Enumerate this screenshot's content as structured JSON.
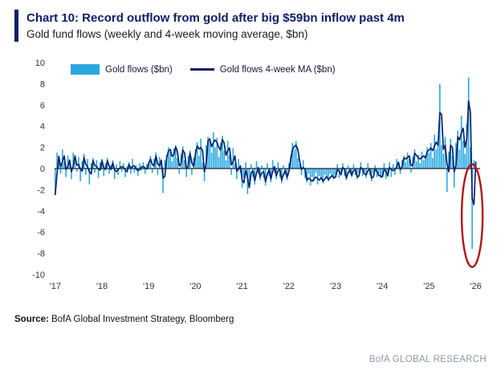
{
  "header": {
    "title": "Chart 10: Record outflow from gold after big $59bn inflow past 4m",
    "subtitle": "Gold fund flows (weekly and 4-week moving average, $bn)"
  },
  "legend": {
    "bars_label": "Gold flows ($bn)",
    "line_label": "Gold flows 4-week MA ($bn)"
  },
  "footer": {
    "source_label": "Source:",
    "source_text": "BofA Global Investment Strategy, Bloomberg",
    "brand": "BofA GLOBAL RESEARCH"
  },
  "colors": {
    "navy": "#0b1f66",
    "bar": "#29a8e0",
    "line": "#0b2369",
    "zero_line": "#23262f",
    "annotation_red": "#b2141a"
  },
  "chart_data": {
    "type": "bar",
    "title": "Gold fund flows (weekly and 4-week moving average, $bn)",
    "ylabel": "$bn",
    "ylim": [
      -10,
      10
    ],
    "ytick_step": 2,
    "grid": false,
    "legend_position": "top-left",
    "x_start_year": 2017,
    "points_per_year": 26,
    "xticks": [
      {
        "label": "'17",
        "index": 0
      },
      {
        "label": "'18",
        "index": 26
      },
      {
        "label": "'19",
        "index": 52
      },
      {
        "label": "'20",
        "index": 78
      },
      {
        "label": "'21",
        "index": 104
      },
      {
        "label": "'22",
        "index": 130
      },
      {
        "label": "'23",
        "index": 156
      },
      {
        "label": "'24",
        "index": 182
      },
      {
        "label": "'25",
        "index": 208
      },
      {
        "label": "'26",
        "index": 234
      }
    ],
    "series": [
      {
        "name": "Gold flows ($bn)",
        "type": "bar",
        "color": "#29a8e0",
        "values": [
          -2.5,
          1.5,
          0.8,
          -0.5,
          1.8,
          0.6,
          -0.8,
          1.2,
          0.4,
          -1.0,
          1.5,
          0.9,
          -0.3,
          1.1,
          -1.2,
          0.7,
          1.4,
          -0.6,
          0.9,
          -1.5,
          0.5,
          1.0,
          -0.4,
          0.8,
          -0.9,
          0.6,
          0.9,
          -0.7,
          0.5,
          1.0,
          -0.5,
          0.3,
          0.8,
          -1.0,
          0.4,
          -0.6,
          0.7,
          -0.3,
          0.5,
          -0.8,
          0.2,
          0.6,
          -0.5,
          0.9,
          -0.4,
          0.3,
          -0.7,
          0.5,
          -0.2,
          0.6,
          -0.5,
          0.4,
          0.6,
          1.2,
          -0.4,
          0.9,
          1.5,
          -0.6,
          1.1,
          0.5,
          -2.3,
          0.8,
          1.3,
          2.0,
          1.6,
          0.7,
          1.9,
          2.2,
          1.0,
          -0.5,
          1.4,
          2.1,
          0.8,
          -0.8,
          1.2,
          1.7,
          -0.6,
          1.0,
          1.8,
          2.5,
          1.2,
          2.8,
          0.6,
          -1.2,
          2.2,
          3.0,
          2.6,
          1.5,
          3.4,
          2.0,
          2.9,
          1.1,
          2.4,
          3.1,
          1.7,
          0.8,
          2.6,
          1.3,
          -0.6,
          1.9,
          0.5,
          -1.0,
          0.9,
          -0.4,
          -1.8,
          -0.9,
          0.6,
          -2.4,
          -1.2,
          0.4,
          -0.8,
          -1.5,
          0.7,
          -0.5,
          -1.1,
          0.3,
          -0.9,
          -1.6,
          0.5,
          -0.7,
          -1.3,
          0.8,
          -0.4,
          -1.0,
          0.6,
          -0.8,
          -1.4,
          0.3,
          -0.6,
          -1.1,
          0.5,
          1.2,
          2.4,
          1.8,
          2.6,
          1.0,
          0.4,
          -0.6,
          0.8,
          -0.9,
          -1.3,
          -0.5,
          -1.6,
          -0.8,
          -1.2,
          -0.4,
          -1.5,
          -0.7,
          -1.0,
          -1.4,
          -0.6,
          -0.9,
          -1.2,
          -0.5,
          -0.8,
          -1.0,
          -0.6,
          0.4,
          -0.9,
          -0.3,
          0.5,
          -0.7,
          -1.1,
          0.3,
          -0.5,
          -0.8,
          0.4,
          -0.6,
          -1.0,
          -0.4,
          0.6,
          -0.7,
          -0.3,
          -0.9,
          0.5,
          -0.6,
          -1.2,
          -0.4,
          0.3,
          -0.8,
          -0.5,
          -0.9,
          -0.7,
          0.5,
          -1.0,
          -0.4,
          0.6,
          -0.8,
          0.4,
          -0.6,
          0.9,
          0.3,
          -0.5,
          0.8,
          1.2,
          0.6,
          1.5,
          0.9,
          -0.4,
          1.1,
          1.8,
          0.7,
          1.3,
          0.5,
          1.6,
          0.8,
          1.2,
          2.0,
          1.5,
          2.4,
          1.0,
          3.2,
          1.8,
          2.6,
          8.0,
          2.2,
          1.4,
          3.0,
          -2.2,
          1.6,
          2.8,
          1.2,
          -1.8,
          2.4,
          3.6,
          1.8,
          5.0,
          2.6,
          1.4,
          4.2,
          8.6,
          2.0,
          -7.6,
          0.8,
          0.5
        ]
      },
      {
        "name": "Gold flows 4-week MA ($bn)",
        "type": "line",
        "color": "#0b2369",
        "derived": "moving_average",
        "window": 2
      }
    ],
    "annotation": {
      "type": "ellipse",
      "label": "record outflow circled",
      "color": "#b2141a",
      "index": 232,
      "y_top": 0.4,
      "y_bottom": -9.3,
      "rx": 13
    }
  }
}
